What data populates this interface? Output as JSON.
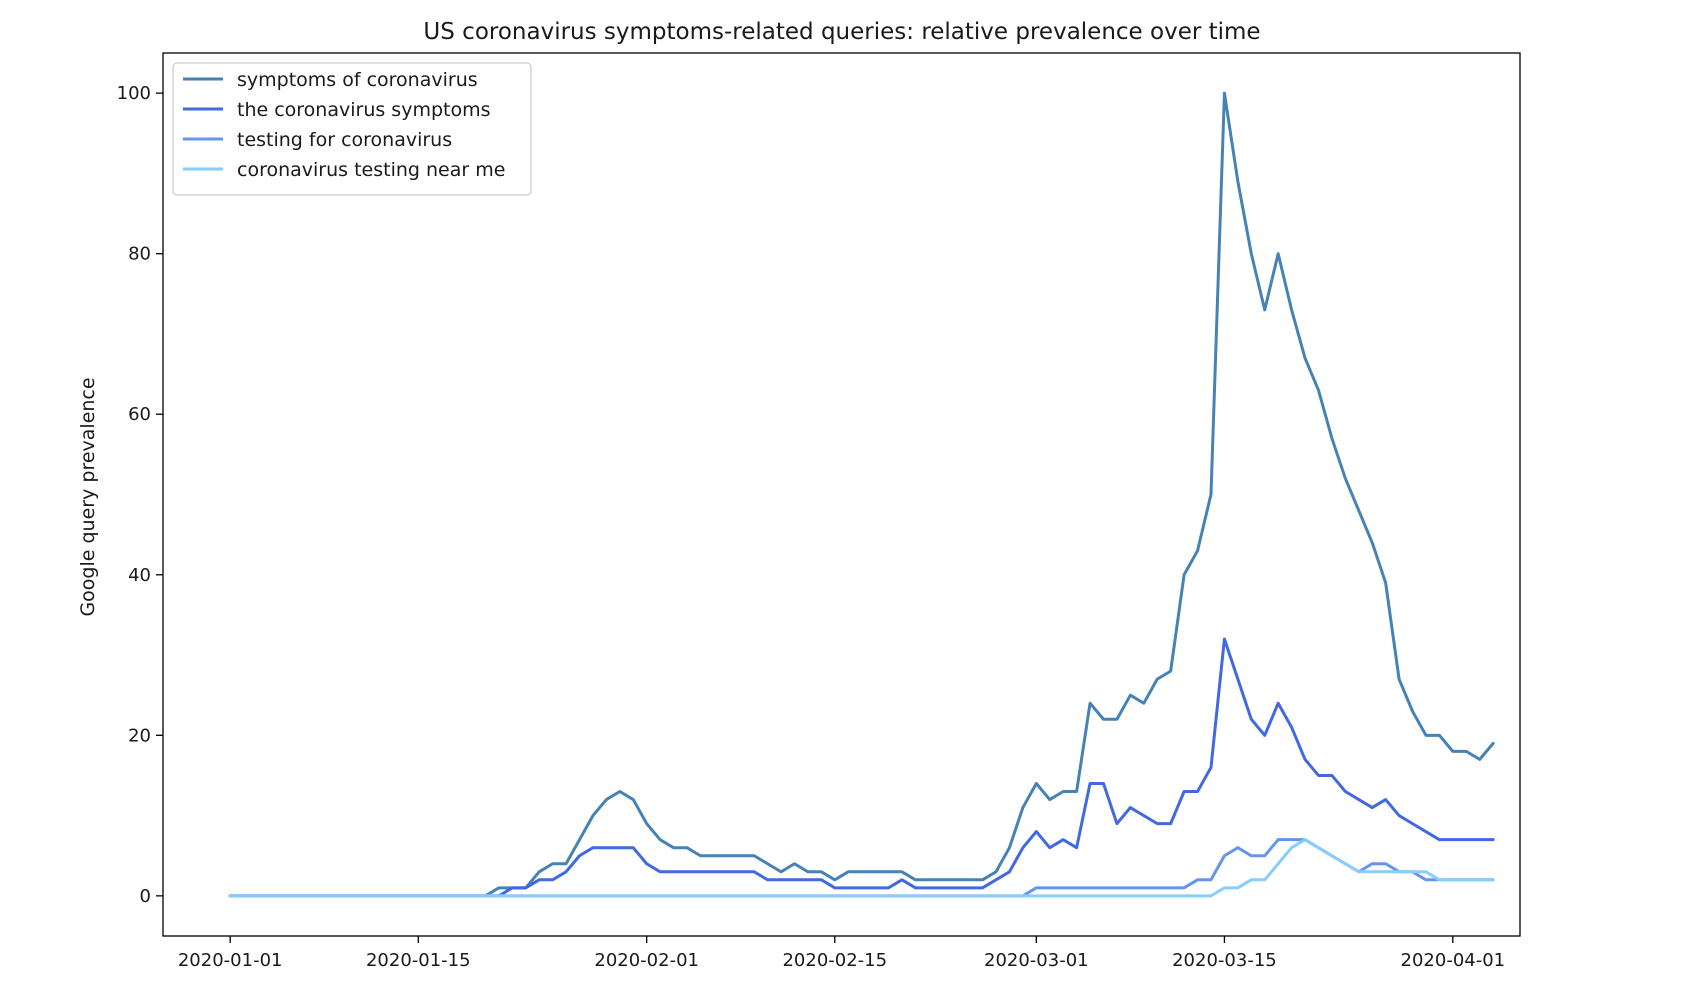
{
  "chart_data": {
    "type": "line",
    "title": "US coronavirus symptoms-related queries: relative prevalence over time",
    "xlabel": "",
    "ylabel": "Google query prevalence",
    "x_start": "2020-01-01",
    "x_end": "2020-04-01",
    "xlim": [
      "2019-12-27",
      "2020-04-06"
    ],
    "ylim": [
      -5,
      105
    ],
    "x_ticks": [
      "2020-01-01",
      "2020-01-15",
      "2020-02-01",
      "2020-02-15",
      "2020-03-01",
      "2020-03-15",
      "2020-04-01"
    ],
    "y_ticks": [
      0,
      20,
      40,
      60,
      80,
      100
    ],
    "grid": false,
    "legend_position": "top-left",
    "series": [
      {
        "name": "symptoms of coronavirus",
        "color": "#4682b4",
        "values": [
          0,
          0,
          0,
          0,
          0,
          0,
          0,
          0,
          0,
          0,
          0,
          0,
          0,
          0,
          0,
          0,
          0,
          0,
          0,
          0,
          1,
          1,
          1,
          3,
          4,
          4,
          7,
          10,
          12,
          13,
          12,
          9,
          7,
          6,
          6,
          5,
          5,
          5,
          5,
          5,
          4,
          3,
          4,
          3,
          3,
          2,
          3,
          3,
          3,
          3,
          3,
          2,
          2,
          2,
          2,
          2,
          2,
          3,
          6,
          11,
          14,
          12,
          13,
          13,
          24,
          22,
          22,
          25,
          24,
          27,
          28,
          40,
          43,
          50,
          100,
          89,
          80,
          73,
          80,
          73,
          67,
          63,
          57,
          52,
          48,
          44,
          39,
          27,
          23,
          20,
          20,
          18,
          18,
          17,
          19
        ]
      },
      {
        "name": "the coronavirus symptoms",
        "color": "#4169e1",
        "values": [
          0,
          0,
          0,
          0,
          0,
          0,
          0,
          0,
          0,
          0,
          0,
          0,
          0,
          0,
          0,
          0,
          0,
          0,
          0,
          0,
          0,
          1,
          1,
          2,
          2,
          3,
          5,
          6,
          6,
          6,
          6,
          4,
          3,
          3,
          3,
          3,
          3,
          3,
          3,
          3,
          2,
          2,
          2,
          2,
          2,
          1,
          1,
          1,
          1,
          1,
          2,
          1,
          1,
          1,
          1,
          1,
          1,
          2,
          3,
          6,
          8,
          6,
          7,
          6,
          14,
          14,
          9,
          11,
          10,
          9,
          9,
          13,
          13,
          16,
          32,
          27,
          22,
          20,
          24,
          21,
          17,
          15,
          15,
          13,
          12,
          11,
          12,
          10,
          9,
          8,
          7,
          7,
          7,
          7,
          7
        ]
      },
      {
        "name": "testing for coronavirus",
        "color": "#6495ed",
        "values": [
          0,
          0,
          0,
          0,
          0,
          0,
          0,
          0,
          0,
          0,
          0,
          0,
          0,
          0,
          0,
          0,
          0,
          0,
          0,
          0,
          0,
          0,
          0,
          0,
          0,
          0,
          0,
          0,
          0,
          0,
          0,
          0,
          0,
          0,
          0,
          0,
          0,
          0,
          0,
          0,
          0,
          0,
          0,
          0,
          0,
          0,
          0,
          0,
          0,
          0,
          0,
          0,
          0,
          0,
          0,
          0,
          0,
          0,
          0,
          0,
          1,
          1,
          1,
          1,
          1,
          1,
          1,
          1,
          1,
          1,
          1,
          1,
          2,
          2,
          5,
          6,
          5,
          5,
          7,
          7,
          7,
          6,
          5,
          4,
          3,
          4,
          4,
          3,
          3,
          2,
          2,
          2,
          2,
          2,
          2
        ]
      },
      {
        "name": "coronavirus testing near me",
        "color": "#87cefa",
        "values": [
          0,
          0,
          0,
          0,
          0,
          0,
          0,
          0,
          0,
          0,
          0,
          0,
          0,
          0,
          0,
          0,
          0,
          0,
          0,
          0,
          0,
          0,
          0,
          0,
          0,
          0,
          0,
          0,
          0,
          0,
          0,
          0,
          0,
          0,
          0,
          0,
          0,
          0,
          0,
          0,
          0,
          0,
          0,
          0,
          0,
          0,
          0,
          0,
          0,
          0,
          0,
          0,
          0,
          0,
          0,
          0,
          0,
          0,
          0,
          0,
          0,
          0,
          0,
          0,
          0,
          0,
          0,
          0,
          0,
          0,
          0,
          0,
          0,
          0,
          1,
          1,
          2,
          2,
          4,
          6,
          7,
          6,
          5,
          4,
          3,
          3,
          3,
          3,
          3,
          3,
          2,
          2,
          2,
          2,
          2
        ]
      }
    ]
  }
}
